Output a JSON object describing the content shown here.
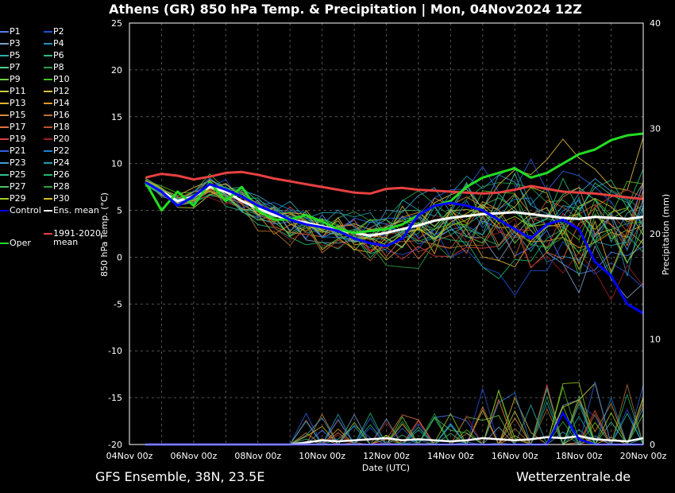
{
  "title": "Athens  (GR)  850 hPa Temp. & Precipitation | Mon, 04Nov2024 12Z",
  "footer": {
    "source": "GFS Ensemble, 38N, 23.5E",
    "site": "Wetterzentrale.de"
  },
  "legend": [
    {
      "label": "P1",
      "color": "#4d7cff"
    },
    {
      "label": "P2",
      "color": "#1f4fd8"
    },
    {
      "label": "P3",
      "color": "#7aa0c8"
    },
    {
      "label": "P4",
      "color": "#2a8fc0"
    },
    {
      "label": "P5",
      "color": "#2ab0a8"
    },
    {
      "label": "P6",
      "color": "#22c07a"
    },
    {
      "label": "P7",
      "color": "#4fd18c"
    },
    {
      "label": "P8",
      "color": "#2e9e4a"
    },
    {
      "label": "P9",
      "color": "#6ed040"
    },
    {
      "label": "P10",
      "color": "#4cc020"
    },
    {
      "label": "P11",
      "color": "#c8d040"
    },
    {
      "label": "P12",
      "color": "#e0c040"
    },
    {
      "label": "P13",
      "color": "#e8b030"
    },
    {
      "label": "P14",
      "color": "#e09820"
    },
    {
      "label": "P15",
      "color": "#d88a40"
    },
    {
      "label": "P16",
      "color": "#b87030"
    },
    {
      "label": "P17",
      "color": "#e07040"
    },
    {
      "label": "P18",
      "color": "#c05030"
    },
    {
      "label": "P19",
      "color": "#e04040"
    },
    {
      "label": "P20",
      "color": "#a02020"
    },
    {
      "label": "P21",
      "color": "#3060e0"
    },
    {
      "label": "P22",
      "color": "#2080d8"
    },
    {
      "label": "P23",
      "color": "#40a0d0"
    },
    {
      "label": "P24",
      "color": "#20a0b0"
    },
    {
      "label": "P25",
      "color": "#30c090"
    },
    {
      "label": "P26",
      "color": "#20b870"
    },
    {
      "label": "P27",
      "color": "#50c060"
    },
    {
      "label": "P28",
      "color": "#30a040"
    },
    {
      "label": "P29",
      "color": "#a0d020"
    },
    {
      "label": "P30",
      "color": "#d0c020"
    },
    {
      "label": "Control",
      "color": "#0000ff"
    },
    {
      "label": "Ens. mean",
      "color": "#ffffff"
    },
    {
      "label": "Oper",
      "color": "#22dd22"
    },
    {
      "label": "1991-2020 mean",
      "color": "#e84040"
    }
  ],
  "chart_data": {
    "type": "line",
    "xlabel": "Date (UTC)",
    "ylabel_left": "850 hPa Temp. (°C)",
    "ylabel_right": "Precipitation (mm)",
    "x_ticks": [
      "04Nov 00z",
      "06Nov 00z",
      "08Nov 00z",
      "10Nov 00z",
      "12Nov 00z",
      "14Nov 00z",
      "16Nov 00z",
      "18Nov 00z",
      "20Nov 00z"
    ],
    "x_range_days": [
      0,
      16
    ],
    "y_left_ticks": [
      25,
      20,
      15,
      10,
      5,
      0,
      -5,
      -10,
      -15,
      -20
    ],
    "y_left_range": [
      -20,
      25
    ],
    "y_right_ticks": [
      40,
      30,
      20,
      10,
      0
    ],
    "y_right_range": [
      0,
      40
    ],
    "grid": true,
    "series_x_days": [
      0.5,
      1,
      1.5,
      2,
      2.5,
      3,
      3.5,
      4,
      4.5,
      5,
      5.5,
      6,
      6.5,
      7,
      7.5,
      8,
      8.5,
      9,
      9.5,
      10,
      10.5,
      11,
      11.5,
      12,
      12.5,
      13,
      13.5,
      14,
      14.5,
      15,
      15.5,
      16
    ],
    "series": [
      {
        "name": "1991-2020 mean",
        "color": "#e84040",
        "width": 3,
        "values": [
          8.5,
          8.9,
          8.7,
          8.3,
          8.6,
          9.0,
          9.1,
          8.8,
          8.4,
          8.1,
          7.8,
          7.5,
          7.2,
          6.9,
          6.8,
          7.3,
          7.4,
          7.2,
          7.1,
          7.0,
          6.9,
          6.8,
          6.9,
          7.2,
          7.6,
          7.3,
          7.0,
          6.9,
          6.8,
          6.6,
          6.4,
          6.2
        ]
      },
      {
        "name": "Ens. mean",
        "color": "#ffffff",
        "width": 3,
        "values": [
          8.0,
          7.0,
          6.0,
          6.5,
          7.5,
          7.0,
          6.0,
          5.2,
          4.5,
          4.0,
          3.7,
          3.3,
          2.9,
          2.6,
          2.3,
          2.6,
          3.0,
          3.4,
          3.9,
          4.2,
          4.4,
          4.6,
          4.7,
          4.8,
          4.6,
          4.4,
          4.2,
          4.1,
          4.3,
          4.2,
          4.1,
          4.3
        ]
      },
      {
        "name": "Oper",
        "color": "#22dd22",
        "width": 3,
        "values": [
          8.0,
          5.0,
          7.0,
          5.5,
          8.0,
          6.0,
          7.5,
          5.0,
          4.0,
          4.0,
          4.5,
          3.8,
          3.0,
          2.6,
          2.8,
          3.0,
          3.5,
          4.5,
          5.5,
          6.0,
          7.5,
          8.5,
          9.0,
          9.5,
          8.5,
          9.0,
          10.0,
          11.0,
          11.5,
          12.5,
          13.0,
          13.2
        ]
      },
      {
        "name": "Control",
        "color": "#0000ff",
        "width": 3,
        "values": [
          8.0,
          7.0,
          5.5,
          6.5,
          7.8,
          7.2,
          6.5,
          5.5,
          4.8,
          4.0,
          3.5,
          3.2,
          2.8,
          2.0,
          1.5,
          1.2,
          2.0,
          4.5,
          5.5,
          5.8,
          5.5,
          5.0,
          4.0,
          3.0,
          2.0,
          3.5,
          4.0,
          3.0,
          -0.5,
          -2.0,
          -5.0,
          -6.0
        ]
      }
    ],
    "precip_series": [
      {
        "name": "Ens. mean",
        "color": "#ffffff",
        "values": [
          0,
          0,
          0,
          0,
          0,
          0,
          0,
          0,
          0,
          0,
          0.2,
          0.4,
          0.3,
          0.4,
          0.5,
          0.6,
          0.4,
          0.5,
          0.4,
          0.3,
          0.4,
          0.6,
          0.5,
          0.4,
          0.5,
          0.7,
          0.6,
          0.8,
          0.5,
          0.4,
          0.3,
          0.6
        ]
      },
      {
        "name": "Control",
        "color": "#0000ff",
        "values": [
          0,
          0,
          0,
          0,
          0,
          0,
          0,
          0,
          0,
          0,
          0,
          0,
          0,
          0,
          0,
          0,
          0,
          0,
          0,
          0,
          0,
          0,
          0,
          0,
          0,
          0,
          3.0,
          0.5,
          0,
          0,
          0,
          0
        ]
      }
    ]
  }
}
